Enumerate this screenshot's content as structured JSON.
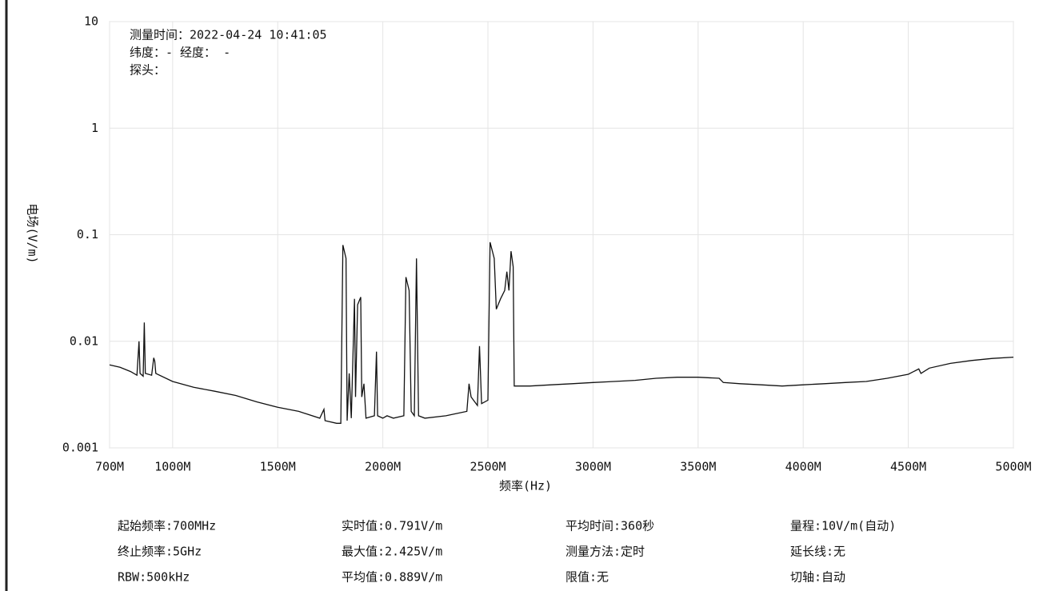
{
  "chart_data": {
    "type": "line",
    "x_label": "频率(Hz)",
    "y_label": "电场(V/m)",
    "annotations": [
      "测量时间：2022-04-24 10:41:05",
      "纬度：- 经度： -",
      "探头："
    ],
    "x": [
      700,
      750,
      800,
      830,
      840,
      845,
      860,
      865,
      870,
      900,
      910,
      915,
      920,
      1000,
      1100,
      1200,
      1300,
      1400,
      1500,
      1600,
      1700,
      1720,
      1725,
      1780,
      1800,
      1810,
      1825,
      1830,
      1840,
      1850,
      1865,
      1870,
      1880,
      1895,
      1900,
      1910,
      1920,
      1960,
      1970,
      1975,
      2000,
      2020,
      2050,
      2100,
      2110,
      2125,
      2135,
      2150,
      2160,
      2170,
      2200,
      2300,
      2400,
      2410,
      2420,
      2450,
      2460,
      2470,
      2500,
      2510,
      2530,
      2540,
      2560,
      2580,
      2590,
      2600,
      2610,
      2620,
      2625,
      2700,
      2800,
      2900,
      3000,
      3100,
      3200,
      3300,
      3400,
      3500,
      3600,
      3620,
      3700,
      3800,
      3900,
      4000,
      4100,
      4200,
      4300,
      4400,
      4500,
      4550,
      4560,
      4600,
      4700,
      4800,
      4900,
      5000
    ],
    "values": [
      0.006,
      0.0057,
      0.0052,
      0.0048,
      0.01,
      0.005,
      0.0047,
      0.015,
      0.005,
      0.0048,
      0.007,
      0.0065,
      0.005,
      0.0042,
      0.0037,
      0.0034,
      0.0031,
      0.0027,
      0.0024,
      0.0022,
      0.0019,
      0.0023,
      0.0018,
      0.0017,
      0.0017,
      0.08,
      0.06,
      0.0018,
      0.005,
      0.0019,
      0.025,
      0.003,
      0.022,
      0.026,
      0.003,
      0.004,
      0.0019,
      0.002,
      0.008,
      0.002,
      0.0019,
      0.002,
      0.0019,
      0.002,
      0.04,
      0.03,
      0.0022,
      0.002,
      0.06,
      0.002,
      0.0019,
      0.002,
      0.0022,
      0.004,
      0.003,
      0.0025,
      0.009,
      0.0026,
      0.0028,
      0.085,
      0.06,
      0.02,
      0.025,
      0.03,
      0.045,
      0.03,
      0.07,
      0.05,
      0.0038,
      0.0038,
      0.0039,
      0.004,
      0.0041,
      0.0042,
      0.0043,
      0.0045,
      0.0046,
      0.0046,
      0.0045,
      0.0041,
      0.004,
      0.0039,
      0.0038,
      0.0039,
      0.004,
      0.0041,
      0.0042,
      0.0045,
      0.0049,
      0.0055,
      0.005,
      0.0056,
      0.0062,
      0.0066,
      0.0069,
      0.0071
    ],
    "color": "#111111",
    "xlim": [
      700,
      5000
    ],
    "xticks": [
      {
        "value": 700,
        "label": "700M"
      },
      {
        "value": 1000,
        "label": "1000M"
      },
      {
        "value": 1500,
        "label": "1500M"
      },
      {
        "value": 2000,
        "label": "2000M"
      },
      {
        "value": 2500,
        "label": "2500M"
      },
      {
        "value": 3000,
        "label": "3000M"
      },
      {
        "value": 3500,
        "label": "3500M"
      },
      {
        "value": 4000,
        "label": "4000M"
      },
      {
        "value": 4500,
        "label": "4500M"
      },
      {
        "value": 5000,
        "label": "5000M"
      }
    ],
    "ylim": [
      0.001,
      10
    ],
    "yticks": [
      10,
      1,
      0.1,
      0.01,
      0.001
    ],
    "yscale": "log",
    "grid": true,
    "info_table": {
      "rows": [
        [
          "起始频率:700MHz",
          "实时值:0.791V/m",
          "平均时间:360秒",
          "量程:10V/m(自动)"
        ],
        [
          "终止频率:5GHz",
          "最大值:2.425V/m",
          "测量方法:定时",
          "延长线:无"
        ],
        [
          "RBW:500kHz",
          "平均值:0.889V/m",
          "限值:无",
          "切轴:自动"
        ]
      ]
    }
  }
}
